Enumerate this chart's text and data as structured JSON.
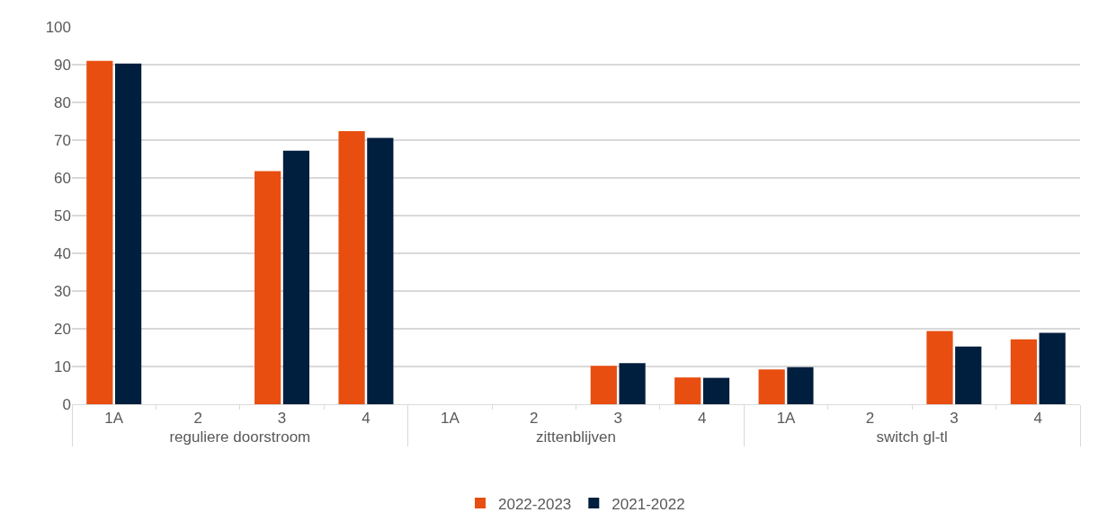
{
  "chart_data": {
    "type": "bar",
    "categories": [
      "1A",
      "2",
      "3",
      "4",
      "1A",
      "2",
      "3",
      "4",
      "1A",
      "2",
      "3",
      "4"
    ],
    "annotations": [
      "reguliere doorstroom",
      "zittenblijven",
      "switch gl-tl"
    ],
    "series": [
      {
        "name": "2022-2023",
        "color": "#e84e10",
        "values": [
          91,
          null,
          61.8,
          72.4,
          null,
          null,
          10.2,
          7.1,
          9.2,
          null,
          19.4,
          17.2
        ]
      },
      {
        "name": "2021-2022",
        "color": "#001e3d",
        "values": [
          90.3,
          null,
          67.2,
          70.6,
          null,
          null,
          10.9,
          7.0,
          9.8,
          null,
          15.3,
          18.9
        ]
      }
    ],
    "ylim": [
      0,
      100
    ],
    "yticks": [
      0,
      10,
      20,
      30,
      40,
      50,
      60,
      70,
      80,
      90,
      100
    ],
    "grid": "y",
    "legend": "bottom"
  }
}
